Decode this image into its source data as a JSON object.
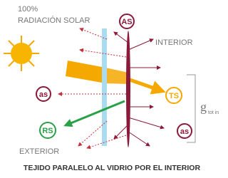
{
  "header": {
    "percent": "100%",
    "source": "RADIACIÓN SOLAR"
  },
  "zones": {
    "interior": "INTERIOR",
    "exterior": "EXTERIOR"
  },
  "badges": {
    "absorbed_fabric": "AS",
    "absorbed_left": "as",
    "transmitted": "TS",
    "reflected": "RS",
    "absorbed_right": "as"
  },
  "g_symbol": {
    "main": "g",
    "sub": "tot in"
  },
  "caption": "TEJIDO PARALELO AL VIDRIO POR EL INTERIOR"
}
